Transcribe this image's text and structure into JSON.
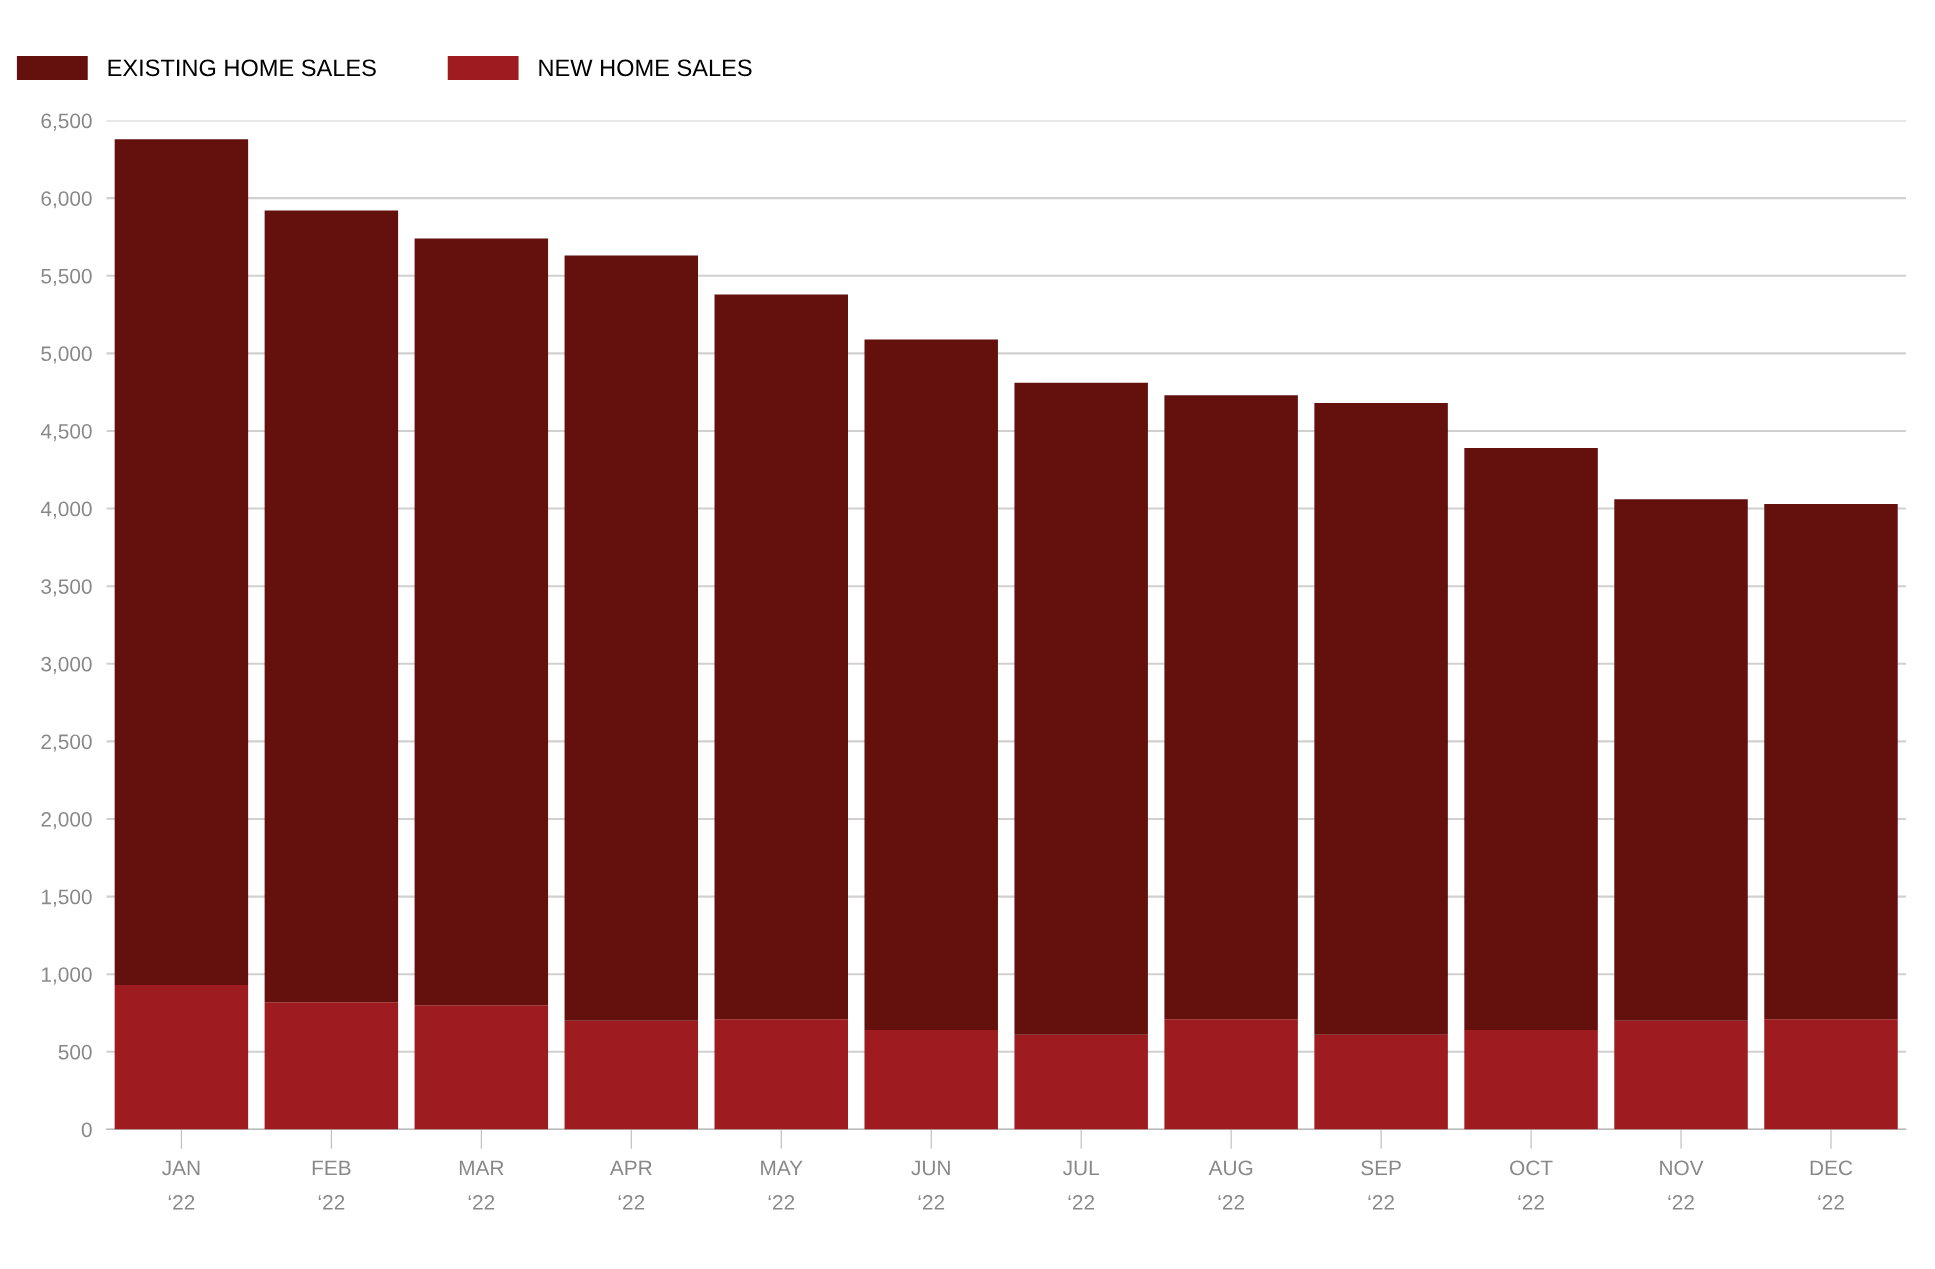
{
  "chart_data": {
    "type": "bar",
    "stacked": true,
    "categories": [
      "JAN\n‘22",
      "FEB\n‘22",
      "MAR\n‘22",
      "APR\n‘22",
      "MAY\n‘22",
      "JUN\n‘22",
      "JUL\n‘22",
      "AUG\n‘22",
      "SEP\n‘22",
      "OCT\n‘22",
      "NOV\n‘22",
      "DEC\n‘22"
    ],
    "series": [
      {
        "name": "NEW HOME SALES",
        "color": "#9e1b20",
        "values": [
          930,
          820,
          800,
          700,
          710,
          640,
          610,
          710,
          610,
          640,
          700,
          710
        ]
      },
      {
        "name": "EXISTING HOME SALES",
        "color": "#64100c",
        "values": [
          5450,
          5100,
          4940,
          4930,
          4670,
          4450,
          4200,
          4020,
          4070,
          3750,
          3360,
          3320
        ]
      }
    ],
    "ylim": [
      0,
      6500
    ],
    "yticks": [
      0,
      500,
      {
        "value": 1000,
        "label": "1,000"
      },
      {
        "value": 1500,
        "label": "1,500"
      },
      {
        "value": 2000,
        "label": "2,000"
      },
      {
        "value": 2500,
        "label": "2,500"
      },
      {
        "value": 3000,
        "label": "3,000"
      },
      {
        "value": 3500,
        "label": "3,500"
      },
      {
        "value": 4000,
        "label": "4,000"
      },
      {
        "value": 4500,
        "label": "4,500"
      },
      {
        "value": 5000,
        "label": "5,000"
      },
      {
        "value": 5500,
        "label": "5,500"
      },
      {
        "value": 6000,
        "label": "6,000"
      },
      {
        "value": 6500,
        "label": "6,500"
      }
    ],
    "grid": "y",
    "legend": "top left"
  }
}
